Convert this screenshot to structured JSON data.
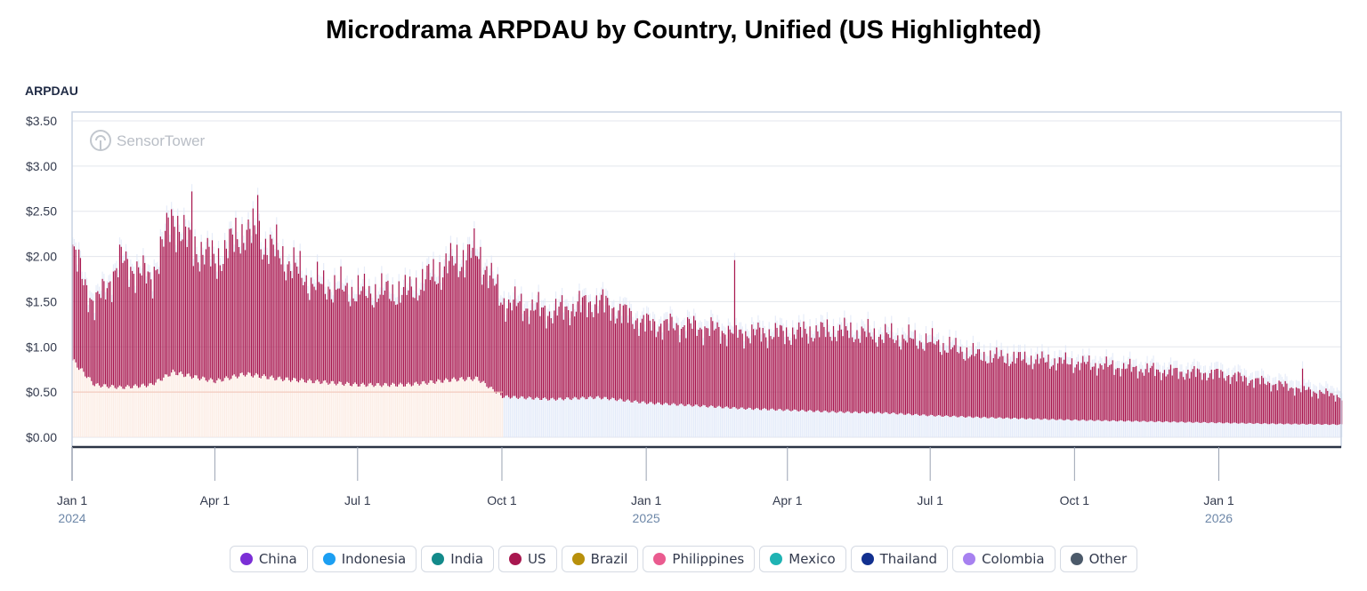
{
  "title": "Microdrama ARPDAU by Country, Unified (US Highlighted)",
  "watermark": "SensorTower",
  "chart_data": {
    "type": "bar",
    "stacked": true,
    "ylabel": "ARPDAU",
    "ylim": [
      0,
      3.5
    ],
    "yticks": [
      "$0.00",
      "$0.50",
      "$1.00",
      "$1.50",
      "$2.00",
      "$2.50",
      "$3.00",
      "$3.50"
    ],
    "grid": true,
    "legend_position": "bottom",
    "x_range": [
      "2024-01-01",
      "2026-03-20"
    ],
    "xticks": [
      {
        "date": "2024-01-01",
        "label": "Jan 1",
        "year": "2024"
      },
      {
        "date": "2024-04-01",
        "label": "Apr 1",
        "year": ""
      },
      {
        "date": "2024-07-01",
        "label": "Jul 1",
        "year": ""
      },
      {
        "date": "2024-10-01",
        "label": "Oct 1",
        "year": ""
      },
      {
        "date": "2025-01-01",
        "label": "Jan 1",
        "year": "2025"
      },
      {
        "date": "2025-04-01",
        "label": "Apr 1",
        "year": ""
      },
      {
        "date": "2025-07-01",
        "label": "Jul 1",
        "year": ""
      },
      {
        "date": "2025-10-01",
        "label": "Oct 1",
        "year": ""
      },
      {
        "date": "2026-01-01",
        "label": "Jan 1",
        "year": "2026"
      }
    ],
    "highlight_series": "US",
    "us_band_approx": [
      {
        "date": "2024-01-01",
        "base": 0.85,
        "top": 2.05
      },
      {
        "date": "2024-01-15",
        "base": 0.58,
        "top": 1.45
      },
      {
        "date": "2024-02-01",
        "base": 0.55,
        "top": 1.95
      },
      {
        "date": "2024-02-20",
        "base": 0.58,
        "top": 1.75
      },
      {
        "date": "2024-03-05",
        "base": 0.72,
        "top": 2.45
      },
      {
        "date": "2024-03-15",
        "base": 0.68,
        "top": 2.15
      },
      {
        "date": "2024-04-01",
        "base": 0.62,
        "top": 1.95
      },
      {
        "date": "2024-04-20",
        "base": 0.7,
        "top": 2.3
      },
      {
        "date": "2024-05-10",
        "base": 0.65,
        "top": 2.05
      },
      {
        "date": "2024-06-01",
        "base": 0.62,
        "top": 1.7
      },
      {
        "date": "2024-07-01",
        "base": 0.58,
        "top": 1.6
      },
      {
        "date": "2024-08-01",
        "base": 0.58,
        "top": 1.6
      },
      {
        "date": "2024-09-01",
        "base": 0.64,
        "top": 1.95
      },
      {
        "date": "2024-09-15",
        "base": 0.65,
        "top": 2.05
      },
      {
        "date": "2024-10-01",
        "base": 0.45,
        "top": 1.5
      },
      {
        "date": "2024-11-01",
        "base": 0.42,
        "top": 1.38
      },
      {
        "date": "2024-12-01",
        "base": 0.44,
        "top": 1.5
      },
      {
        "date": "2025-01-01",
        "base": 0.38,
        "top": 1.25
      },
      {
        "date": "2025-02-01",
        "base": 0.35,
        "top": 1.22
      },
      {
        "date": "2025-03-01",
        "base": 0.32,
        "top": 1.15
      },
      {
        "date": "2025-04-01",
        "base": 0.3,
        "top": 1.15
      },
      {
        "date": "2025-05-01",
        "base": 0.28,
        "top": 1.18
      },
      {
        "date": "2025-06-01",
        "base": 0.27,
        "top": 1.12
      },
      {
        "date": "2025-07-01",
        "base": 0.24,
        "top": 1.05
      },
      {
        "date": "2025-08-01",
        "base": 0.22,
        "top": 0.9
      },
      {
        "date": "2025-10-01",
        "base": 0.19,
        "top": 0.82
      },
      {
        "date": "2025-12-01",
        "base": 0.17,
        "top": 0.72
      },
      {
        "date": "2026-01-01",
        "base": 0.16,
        "top": 0.7
      },
      {
        "date": "2026-02-01",
        "base": 0.15,
        "top": 0.6
      },
      {
        "date": "2026-03-20",
        "base": 0.14,
        "top": 0.45
      }
    ],
    "us_spikes": [
      {
        "date": "2024-03-17",
        "top": 2.72
      },
      {
        "date": "2024-04-28",
        "top": 2.68
      },
      {
        "date": "2025-02-26",
        "top": 1.96
      },
      {
        "date": "2026-02-23",
        "top": 0.76
      }
    ],
    "series": [
      {
        "name": "China",
        "color": "#7b2fd6"
      },
      {
        "name": "Indonesia",
        "color": "#1c9ff2"
      },
      {
        "name": "India",
        "color": "#138a8a"
      },
      {
        "name": "US",
        "color": "#a8174f"
      },
      {
        "name": "Brazil",
        "color": "#b8900b"
      },
      {
        "name": "Philippines",
        "color": "#ea5b8f"
      },
      {
        "name": "Mexico",
        "color": "#1fb3b3"
      },
      {
        "name": "Thailand",
        "color": "#12308f"
      },
      {
        "name": "Colombia",
        "color": "#a781f0"
      },
      {
        "name": "Other",
        "color": "#4c5a6a"
      }
    ]
  },
  "colors": {
    "us": "#a8174f",
    "faded_other": "#dde6f7",
    "faded_warm": "#fbe8df",
    "grid": "#e3e6ec",
    "axis": "#2b3445",
    "year_label": "#6d87a8",
    "zero_line": "#f2c3b5"
  }
}
